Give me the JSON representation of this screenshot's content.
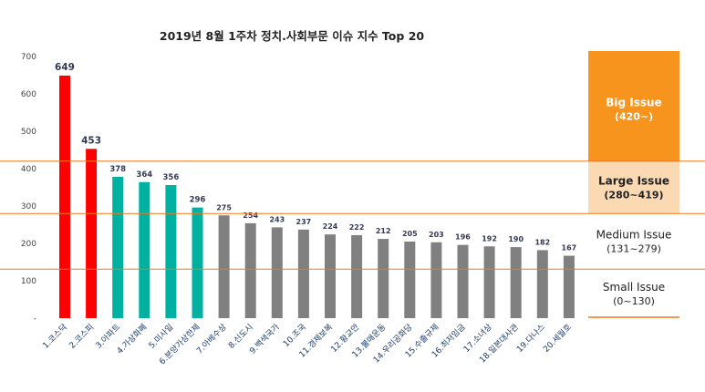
{
  "chart_data": {
    "type": "bar",
    "title": "2019년 8월 1주차 정치.사회부문 이슈 지수 Top 20",
    "xlabel": "",
    "ylabel": "",
    "ylim": [
      0,
      700
    ],
    "yticks": [
      "-",
      "100",
      "200",
      "300",
      "400",
      "500",
      "600",
      "700"
    ],
    "grid": false,
    "categories": [
      "1.코스닥",
      "2.코스피",
      "3.아파트",
      "4.가상화폐",
      "5.미사일",
      "6.분양가상한제",
      "7.아베수상",
      "8.신도시",
      "9.백색국가",
      "10.조국",
      "11.경제보복",
      "12.황교안",
      "13.불매운동",
      "14.우리공화당",
      "15.수출규제",
      "16.최저임금",
      "17.소녀상",
      "18.일본대사관",
      "19.다나스",
      "20.세월호"
    ],
    "values": [
      649,
      453,
      378,
      364,
      356,
      296,
      275,
      254,
      243,
      237,
      224,
      222,
      212,
      205,
      203,
      196,
      192,
      190,
      182,
      167
    ],
    "bar_colors": [
      "#ff0000",
      "#ff0000",
      "#00b0a0",
      "#00b0a0",
      "#00b0a0",
      "#00b0a0",
      "#808080",
      "#808080",
      "#808080",
      "#808080",
      "#808080",
      "#808080",
      "#808080",
      "#808080",
      "#808080",
      "#808080",
      "#808080",
      "#808080",
      "#808080",
      "#808080"
    ],
    "thresholds": [
      420,
      280,
      131
    ],
    "threshold_color": "#f07820",
    "bands": [
      {
        "name": "Big Issue",
        "range": "(420~)",
        "min": 420,
        "max": 700,
        "fill": "#f7941d",
        "text_color": "#ffffff",
        "bold": true
      },
      {
        "name": "Large Issue",
        "range": "(280~419)",
        "min": 280,
        "max": 420,
        "fill": "#fbd9b3",
        "text_color": "#222222",
        "bold": true
      },
      {
        "name": "Medium Issue",
        "range": "(131~279)",
        "min": 131,
        "max": 280,
        "fill": "#ffffff",
        "text_color": "#222222",
        "bold": false
      },
      {
        "name": "Small Issue",
        "range": "(0~130)",
        "min": 0,
        "max": 131,
        "fill": "#ffffff",
        "text_color": "#222222",
        "bold": false
      }
    ]
  }
}
